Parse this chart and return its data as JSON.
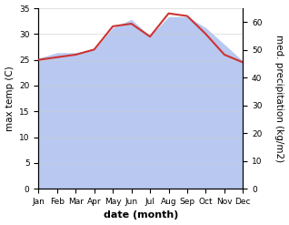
{
  "months": [
    "Jan",
    "Feb",
    "Mar",
    "Apr",
    "May",
    "Jun",
    "Jul",
    "Aug",
    "Sep",
    "Oct",
    "Nov",
    "Dec"
  ],
  "temp": [
    25,
    25.5,
    26,
    27,
    31.5,
    32,
    29.5,
    34,
    33.5,
    30,
    26,
    24.5
  ],
  "precip": [
    47,
    49,
    49,
    50,
    58,
    61,
    55,
    62,
    62,
    58,
    52,
    46
  ],
  "temp_color": "#cc3333",
  "precip_fill_color": "#b8c8f0",
  "temp_ylim": [
    0,
    35
  ],
  "precip_ylim": [
    0,
    65
  ],
  "temp_yticks": [
    0,
    5,
    10,
    15,
    20,
    25,
    30,
    35
  ],
  "precip_yticks": [
    0,
    10,
    20,
    30,
    40,
    50,
    60
  ],
  "ylabel_left": "max temp (C)",
  "ylabel_right": "med. precipitation (kg/m2)",
  "xlabel": "date (month)",
  "background_color": "#ffffff",
  "label_fontsize": 7.5,
  "tick_fontsize": 6.5,
  "xlabel_fontsize": 8,
  "xlabel_bold": true
}
